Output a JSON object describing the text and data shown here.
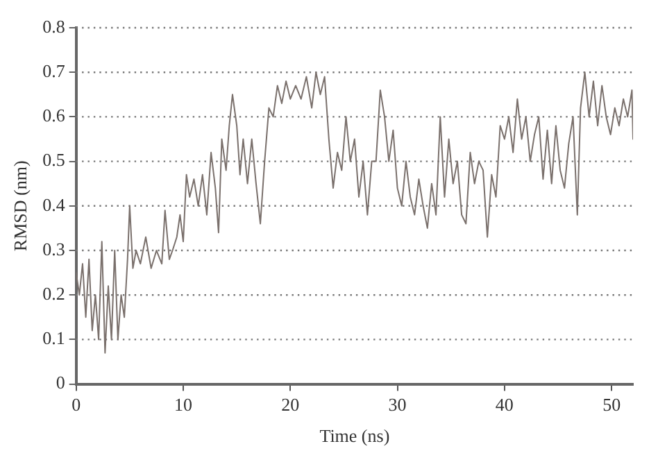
{
  "chart_data": {
    "type": "line",
    "xlabel": "Time (ns)",
    "ylabel": "RMSD (nm)",
    "xlim": [
      0,
      52
    ],
    "xticks": [
      0,
      10,
      20,
      30,
      40,
      50
    ],
    "ylim": [
      0,
      0.8
    ],
    "yticks": [
      0,
      0.1,
      0.2,
      0.3,
      0.4,
      0.5,
      0.6,
      0.7,
      0.8
    ],
    "grid": "y",
    "legend": false,
    "marker": "none",
    "line_style": "solid",
    "x": [
      0,
      0.3,
      0.6,
      0.9,
      1.2,
      1.5,
      1.8,
      2.1,
      2.4,
      2.7,
      3.0,
      3.3,
      3.6,
      3.9,
      4.2,
      4.5,
      4.8,
      5.0,
      5.3,
      5.6,
      6,
      6.5,
      7,
      7.5,
      8,
      8.3,
      8.7,
      9,
      9.4,
      9.7,
      10,
      10.3,
      10.6,
      11,
      11.4,
      11.8,
      12.2,
      12.6,
      13,
      13.3,
      13.6,
      14,
      14.3,
      14.6,
      15,
      15.3,
      15.6,
      16,
      16.4,
      16.8,
      17.2,
      17.6,
      18,
      18.4,
      18.8,
      19.2,
      19.6,
      20,
      20.5,
      21,
      21.5,
      22,
      22.4,
      22.8,
      23.2,
      23.6,
      24,
      24.4,
      24.8,
      25.2,
      25.6,
      26,
      26.4,
      26.8,
      27.2,
      27.6,
      28,
      28.4,
      28.8,
      29.2,
      29.6,
      30,
      30.4,
      30.8,
      31.2,
      31.6,
      32,
      32.4,
      32.8,
      33.2,
      33.6,
      34,
      34.4,
      34.8,
      35.2,
      35.6,
      36,
      36.4,
      36.8,
      37.2,
      37.6,
      38,
      38.4,
      38.8,
      39.2,
      39.6,
      40,
      40.4,
      40.8,
      41.2,
      41.6,
      42,
      42.4,
      42.8,
      43.2,
      43.6,
      44,
      44.4,
      44.8,
      45.2,
      45.6,
      46,
      46.4,
      46.8,
      47.1,
      47.5,
      47.9,
      48.3,
      48.7,
      49.1,
      49.5,
      49.9,
      50.3,
      50.7,
      51.1,
      51.5,
      51.9,
      52
    ],
    "series": [
      {
        "color": "#7a706c",
        "values": [
          0.25,
          0.2,
          0.27,
          0.15,
          0.28,
          0.12,
          0.2,
          0.1,
          0.32,
          0.07,
          0.22,
          0.1,
          0.3,
          0.1,
          0.2,
          0.15,
          0.28,
          0.4,
          0.26,
          0.3,
          0.27,
          0.33,
          0.26,
          0.3,
          0.27,
          0.39,
          0.28,
          0.3,
          0.33,
          0.38,
          0.32,
          0.47,
          0.42,
          0.46,
          0.4,
          0.47,
          0.38,
          0.52,
          0.44,
          0.34,
          0.55,
          0.48,
          0.58,
          0.65,
          0.58,
          0.47,
          0.55,
          0.45,
          0.55,
          0.45,
          0.36,
          0.5,
          0.62,
          0.6,
          0.67,
          0.63,
          0.68,
          0.64,
          0.67,
          0.64,
          0.69,
          0.62,
          0.7,
          0.65,
          0.69,
          0.55,
          0.44,
          0.52,
          0.48,
          0.6,
          0.5,
          0.55,
          0.42,
          0.5,
          0.38,
          0.5,
          0.5,
          0.66,
          0.6,
          0.5,
          0.57,
          0.44,
          0.4,
          0.5,
          0.42,
          0.38,
          0.46,
          0.4,
          0.35,
          0.45,
          0.38,
          0.6,
          0.42,
          0.55,
          0.45,
          0.5,
          0.38,
          0.36,
          0.52,
          0.45,
          0.5,
          0.48,
          0.33,
          0.47,
          0.42,
          0.58,
          0.55,
          0.6,
          0.52,
          0.64,
          0.55,
          0.6,
          0.5,
          0.56,
          0.6,
          0.46,
          0.57,
          0.45,
          0.58,
          0.48,
          0.44,
          0.54,
          0.6,
          0.38,
          0.62,
          0.7,
          0.6,
          0.68,
          0.58,
          0.67,
          0.6,
          0.56,
          0.62,
          0.58,
          0.64,
          0.6,
          0.66,
          0.55
        ]
      }
    ]
  }
}
